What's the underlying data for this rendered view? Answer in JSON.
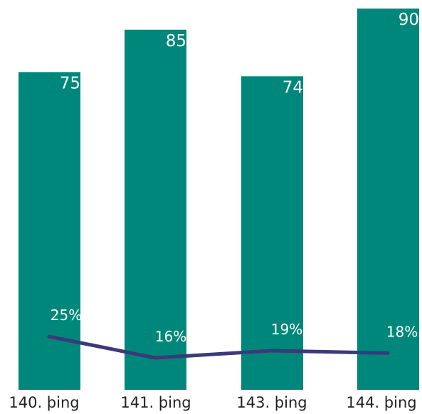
{
  "colors": {
    "bar": "#00877B",
    "line": "#3A3A7A",
    "bar_label": "#ffffff",
    "line_label": "#ffffff",
    "axis_label": "#222222"
  },
  "chart_data": {
    "type": "bar",
    "title": "",
    "xlabel": "",
    "ylabel": "",
    "categories": [
      "140. þing",
      "141. þing",
      "143. þing",
      "144. þing"
    ],
    "series": [
      {
        "type": "bar",
        "values": [
          75,
          85,
          74,
          90
        ],
        "labels": [
          "75",
          "85",
          "74",
          "90"
        ]
      },
      {
        "type": "line",
        "values": [
          25,
          16,
          19,
          18
        ],
        "labels": [
          "25%",
          "16%",
          "19%",
          "18%"
        ]
      }
    ],
    "legend": "none",
    "grid": false
  }
}
